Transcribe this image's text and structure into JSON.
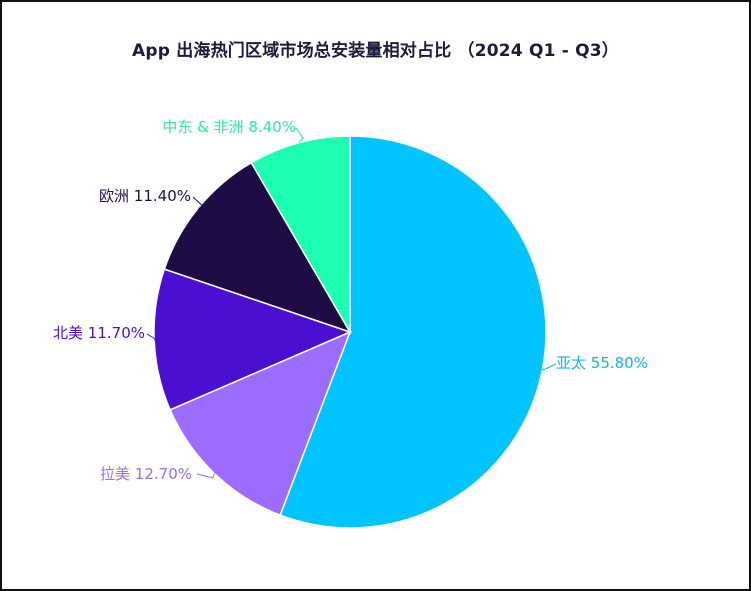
{
  "chart_data": {
    "type": "pie",
    "title": "App 出海热门区域市场总安装量相对占比 （2024 Q1 - Q3）",
    "slices": [
      {
        "label": "亚太",
        "value": 55.8,
        "value_label": "55.80%",
        "color": "#00c4ff",
        "label_color": "#14b4e8"
      },
      {
        "label": "拉美",
        "value": 12.7,
        "value_label": "12.70%",
        "color": "#9b6cff",
        "label_color": "#9a6cf2"
      },
      {
        "label": "北美",
        "value": 11.7,
        "value_label": "11.70%",
        "color": "#4a0fd1",
        "label_color": "#4a10c8"
      },
      {
        "label": "欧洲",
        "value": 11.4,
        "value_label": "11.40%",
        "color": "#200c45",
        "label_color": "#221045"
      },
      {
        "label": "中东 & 非洲",
        "value": 8.4,
        "value_label": "8.40%",
        "color": "#1cffb0",
        "label_color": "#2ee8a8"
      }
    ],
    "start_angle": "top",
    "direction": "clockwise",
    "legend": "none",
    "grid": false
  }
}
